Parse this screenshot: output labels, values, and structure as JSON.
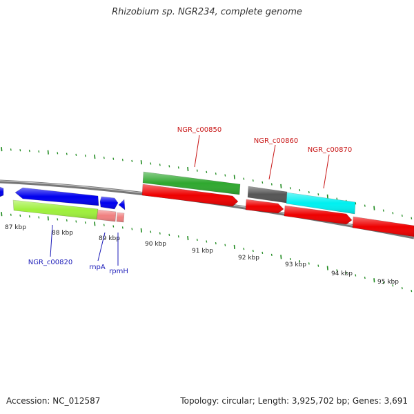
{
  "title": "Rhizobium sp. NGR234, complete genome",
  "accession": "Accession: NC_012587",
  "topology": "Topology: circular; Length: 3,925,702 bp; Genes: 3,691",
  "colors": {
    "backbone": "#8c8c8c",
    "ticks": "#1e8a1e",
    "label_blue": "#1a1ab8",
    "label_red": "#c81414"
  },
  "ruler": [
    "87 kbp",
    "88 kbp",
    "89 kbp",
    "90 kbp",
    "91 kbp",
    "92 kbp",
    "93 kbp",
    "94 kbp",
    "95 kbp"
  ],
  "features": [
    {
      "name": "",
      "color": "#0000ee"
    },
    {
      "name": "",
      "color": "#0000ee"
    },
    {
      "name": "",
      "color": "#0000ee"
    },
    {
      "name": "",
      "color": "#0000ee"
    },
    {
      "name": "",
      "color": "#9ef03c"
    },
    {
      "name": "",
      "color": "#f08080"
    },
    {
      "name": "",
      "color": "#f08080"
    },
    {
      "name": "",
      "color": "#2fa82f"
    },
    {
      "name": "",
      "color": "#555555"
    },
    {
      "name": "",
      "color": "#00f0f0"
    },
    {
      "name": "",
      "color": "#ee0000"
    },
    {
      "name": "",
      "color": "#ee0000"
    },
    {
      "name": "",
      "color": "#ee0000"
    },
    {
      "name": "",
      "color": "#ee0000"
    }
  ],
  "labels": [
    "NGR_c00850",
    "NGR_c00860",
    "NGR_c00870",
    "NGR_c00820",
    "rnpA",
    "rpmH"
  ]
}
